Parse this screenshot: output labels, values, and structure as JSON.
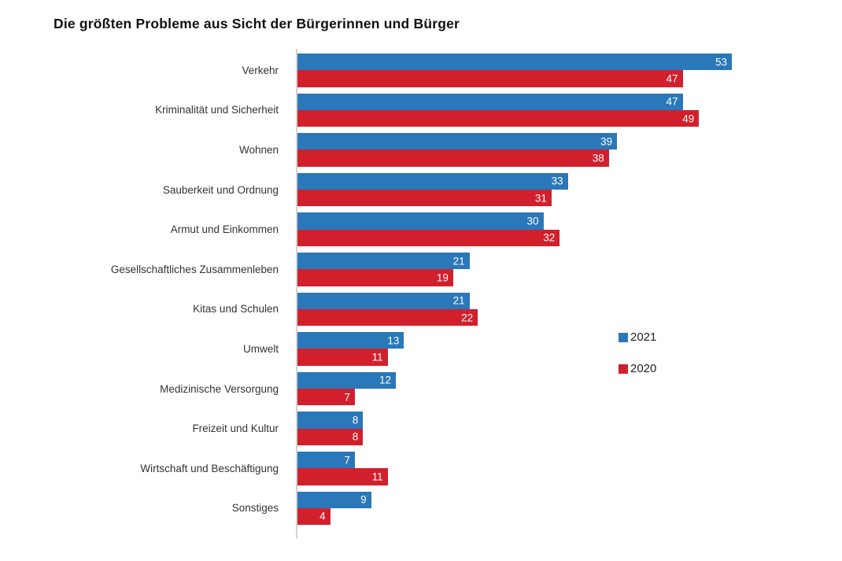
{
  "title": "Die größten Probleme aus Sicht der Bürgerinnen und Bürger",
  "colors": {
    "series_2021": "#2A77B9",
    "series_2020": "#D1202C",
    "axis_line": "#d2d2d2",
    "title_text": "#111111",
    "category_text": "#333333",
    "value_text": "#ffffff"
  },
  "legend": {
    "items": [
      {
        "label": "2021",
        "color": "#2A77B9"
      },
      {
        "label": "2020",
        "color": "#D1202C"
      }
    ]
  },
  "chart_data": {
    "type": "bar",
    "orientation": "horizontal",
    "title": "Die größten Probleme aus Sicht der Bürgerinnen und Bürger",
    "xlabel": "",
    "ylabel": "",
    "xlim": [
      0,
      53
    ],
    "grid": false,
    "legend_position": "right-middle",
    "value_labels": "inside-end",
    "categories": [
      "Verkehr",
      "Kriminalität und Sicherheit",
      "Wohnen",
      "Sauberkeit und Ordnung",
      "Armut und Einkommen",
      "Gesellschaftliches Zusammenleben",
      "Kitas und Schulen",
      "Umwelt",
      "Medizinische Versorgung",
      "Freizeit und Kultur",
      "Wirtschaft und Beschäftigung",
      "Sonstiges"
    ],
    "series": [
      {
        "name": "2021",
        "color": "#2A77B9",
        "values": [
          53,
          47,
          39,
          33,
          30,
          21,
          21,
          13,
          12,
          8,
          7,
          9
        ]
      },
      {
        "name": "2020",
        "color": "#D1202C",
        "values": [
          47,
          49,
          38,
          31,
          32,
          19,
          22,
          11,
          7,
          8,
          11,
          4
        ]
      }
    ]
  }
}
